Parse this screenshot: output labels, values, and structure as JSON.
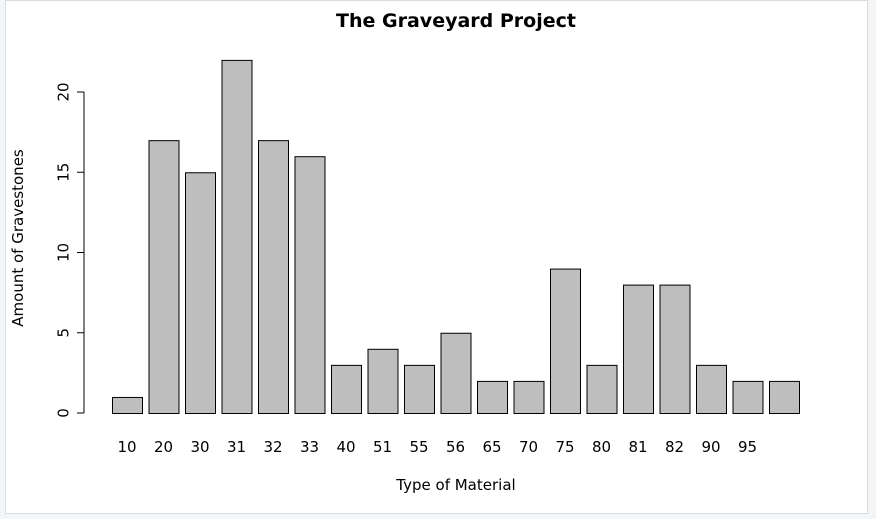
{
  "chart_data": {
    "type": "bar",
    "title": "The Graveyard Project",
    "xlabel": "Type of Material",
    "ylabel": "Amount of Gravestones",
    "categories": [
      "10",
      "20",
      "30",
      "31",
      "32",
      "33",
      "40",
      "51",
      "55",
      "56",
      "65",
      "70",
      "75",
      "80",
      "81",
      "82",
      "90",
      "95",
      ""
    ],
    "values": [
      1,
      17,
      15,
      22,
      17,
      16,
      3,
      4,
      3,
      5,
      2,
      2,
      9,
      3,
      8,
      8,
      3,
      2,
      2
    ],
    "ylim": [
      0,
      22
    ],
    "yticks": [
      0,
      5,
      10,
      15,
      20
    ],
    "grid": false,
    "colors": {
      "bar_fill": "#bebebe",
      "bar_stroke": "#000000"
    }
  }
}
